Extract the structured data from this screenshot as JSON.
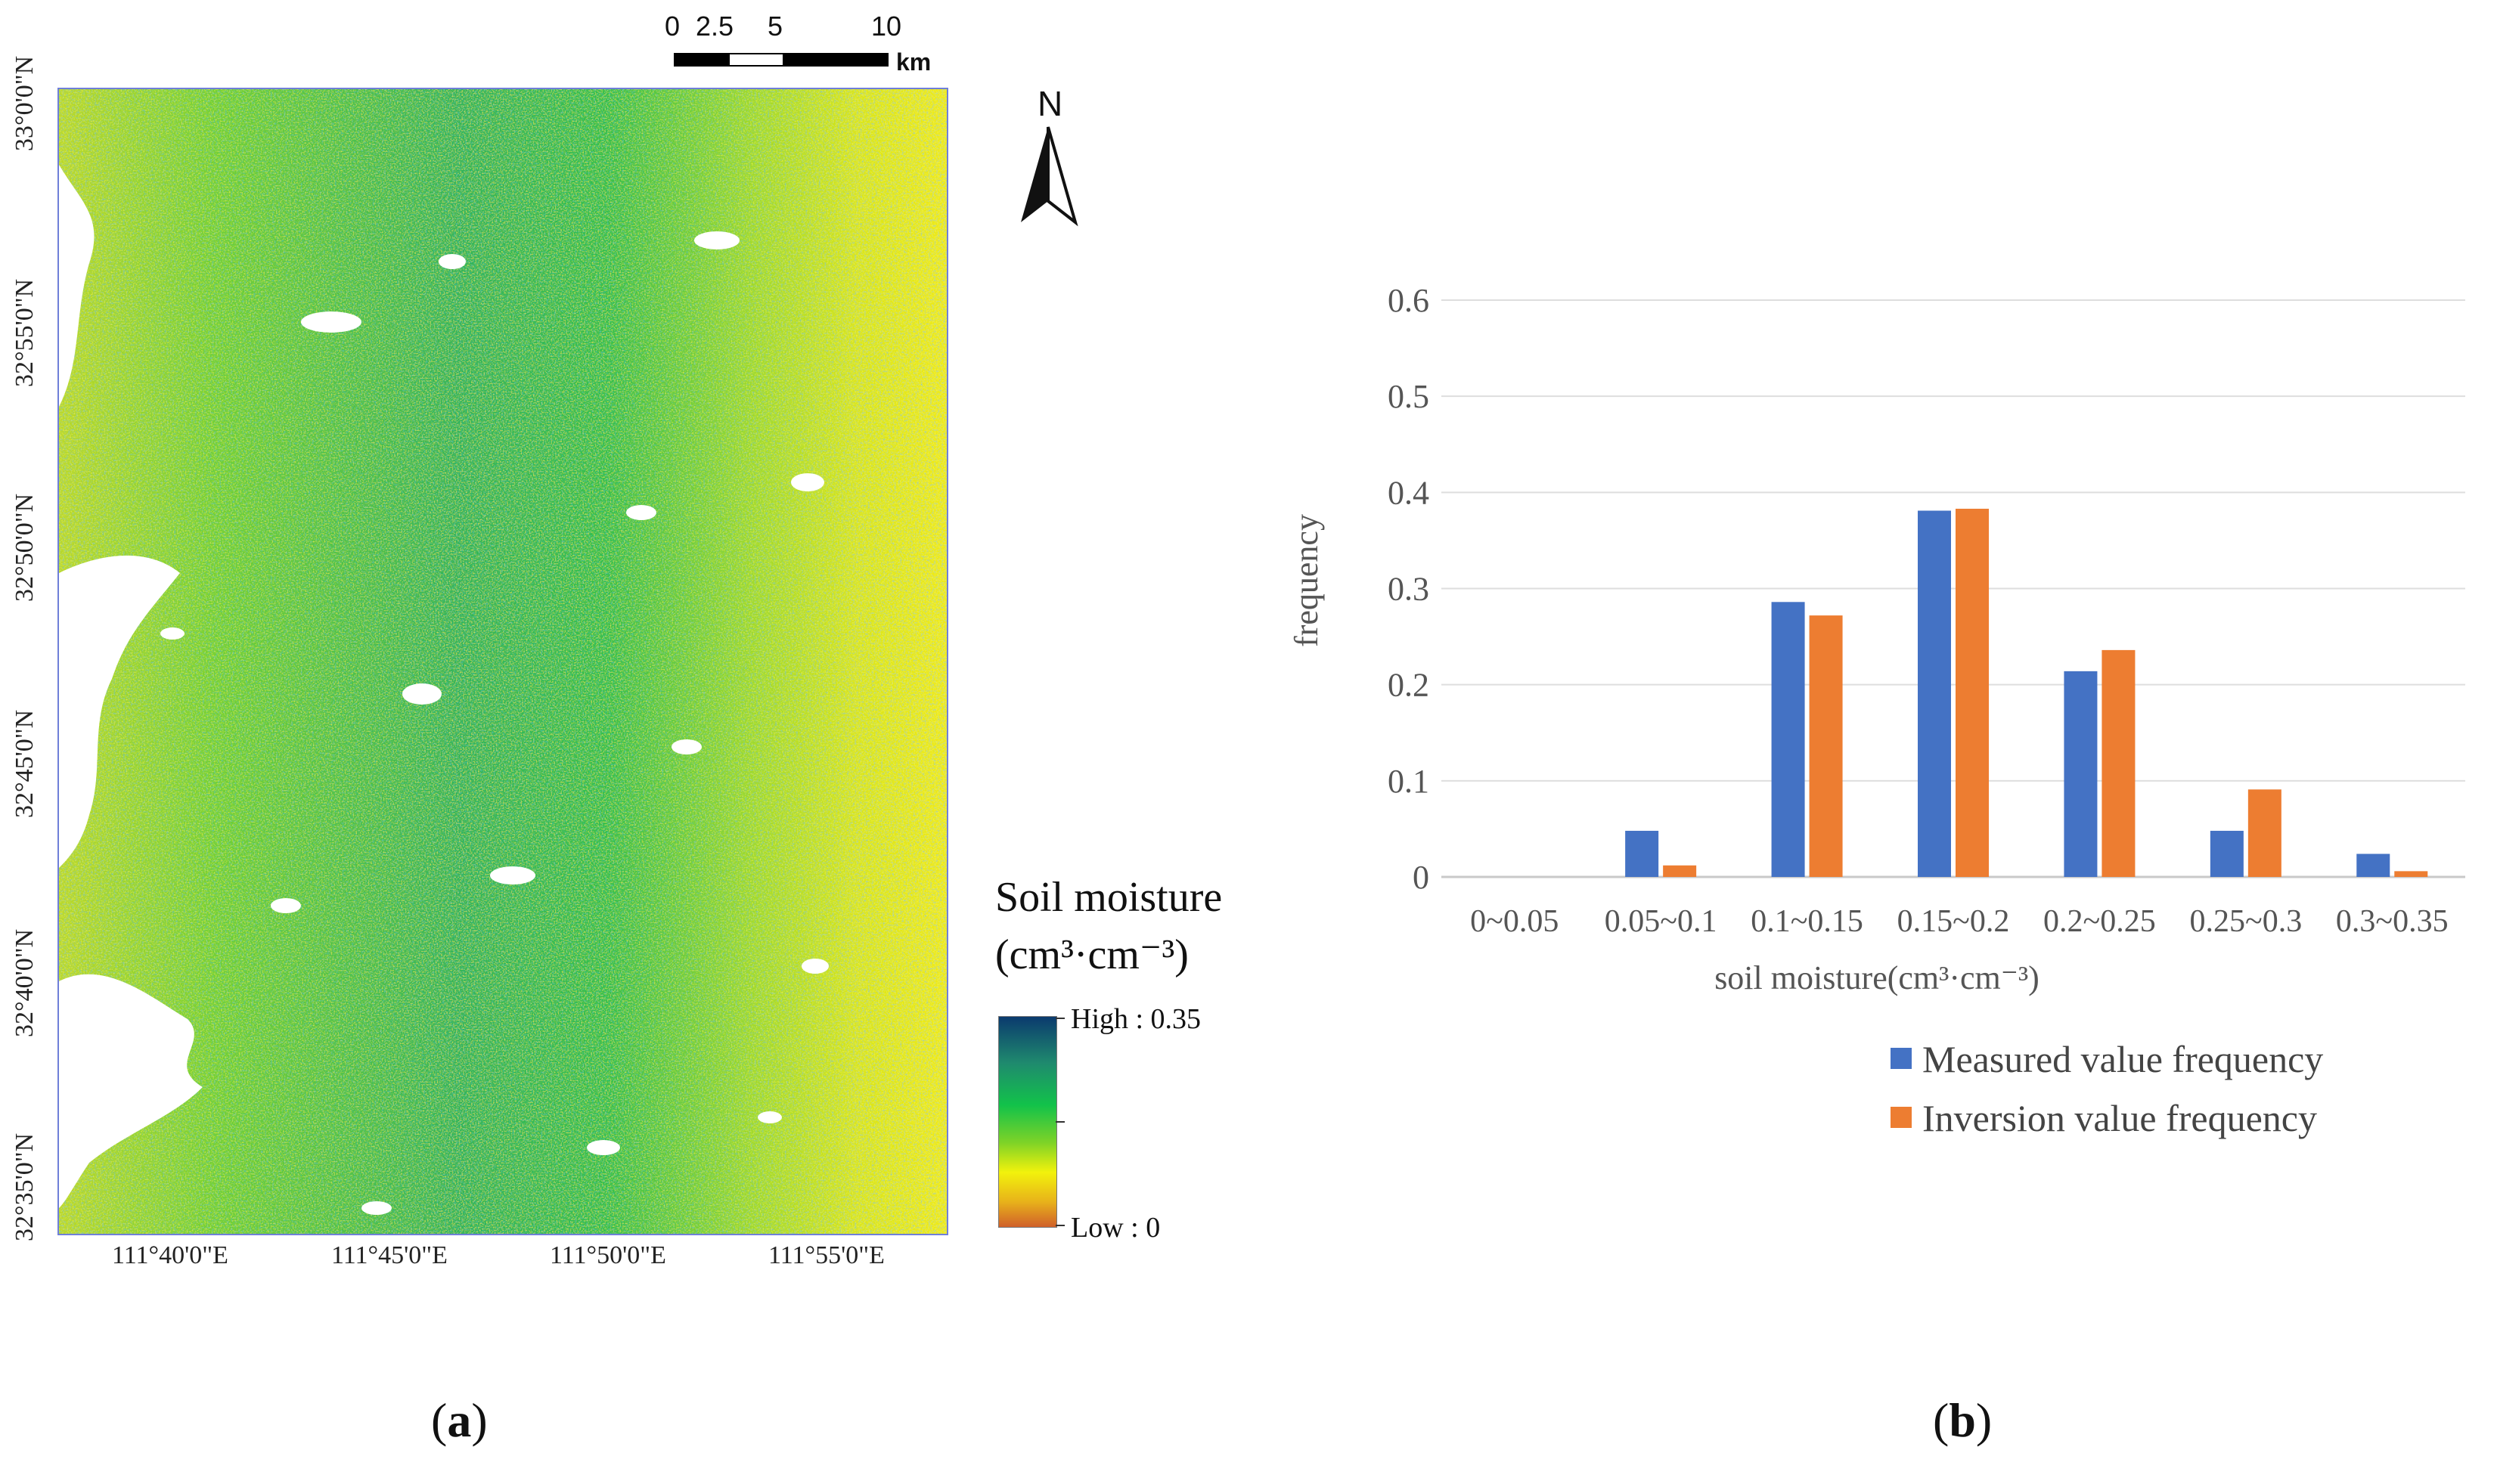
{
  "panel_a": {
    "caption_letter": "a",
    "scale_bar": {
      "ticks": [
        "0",
        "2.5",
        "5",
        "10"
      ],
      "unit": "km"
    },
    "north_arrow": {
      "label": "N"
    },
    "longitude_labels": [
      "111°40'0\"E",
      "111°45'0\"E",
      "111°50'0\"E",
      "111°55'0\"E"
    ],
    "latitude_labels": [
      "33°0'0\"N",
      "32°55'0\"N",
      "32°50'0\"N",
      "32°45'0\"N",
      "32°40'0\"N",
      "32°35'0\"N"
    ],
    "legend": {
      "title_line1": "Soil moisture",
      "title_line2": "(cm³·cm⁻³)",
      "high_label": "High : 0.35",
      "low_label": "Low : 0",
      "high_value": 0.35,
      "low_value": 0,
      "colors": [
        "#0b3a6e",
        "#1f8a6e",
        "#12c24a",
        "#7fd327",
        "#f2f20c",
        "#e8b21a",
        "#d0602a"
      ]
    }
  },
  "panel_b": {
    "caption_letter": "b"
  },
  "chart_data": {
    "type": "bar",
    "title": "",
    "xlabel": "soil moisture(cm³·cm⁻³)",
    "ylabel": "frequency",
    "ylim": [
      0,
      0.6
    ],
    "yticks": [
      "0",
      "0.1",
      "0.2",
      "0.3",
      "0.4",
      "0.5",
      "0.6"
    ],
    "grid": true,
    "legend_position": "bottom-right",
    "categories": [
      "0~0.05",
      "0.05~0.1",
      "0.1~0.15",
      "0.15~0.2",
      "0.2~0.25",
      "0.25~0.3",
      "0.3~0.35"
    ],
    "series": [
      {
        "name": "Measured value frequency",
        "color": "#4472c4",
        "values": [
          0,
          0.048,
          0.286,
          0.381,
          0.214,
          0.048,
          0.024
        ]
      },
      {
        "name": "Inversion value frequency",
        "color": "#ed7d31",
        "values": [
          0,
          0.012,
          0.272,
          0.383,
          0.236,
          0.091,
          0.006
        ]
      }
    ]
  }
}
